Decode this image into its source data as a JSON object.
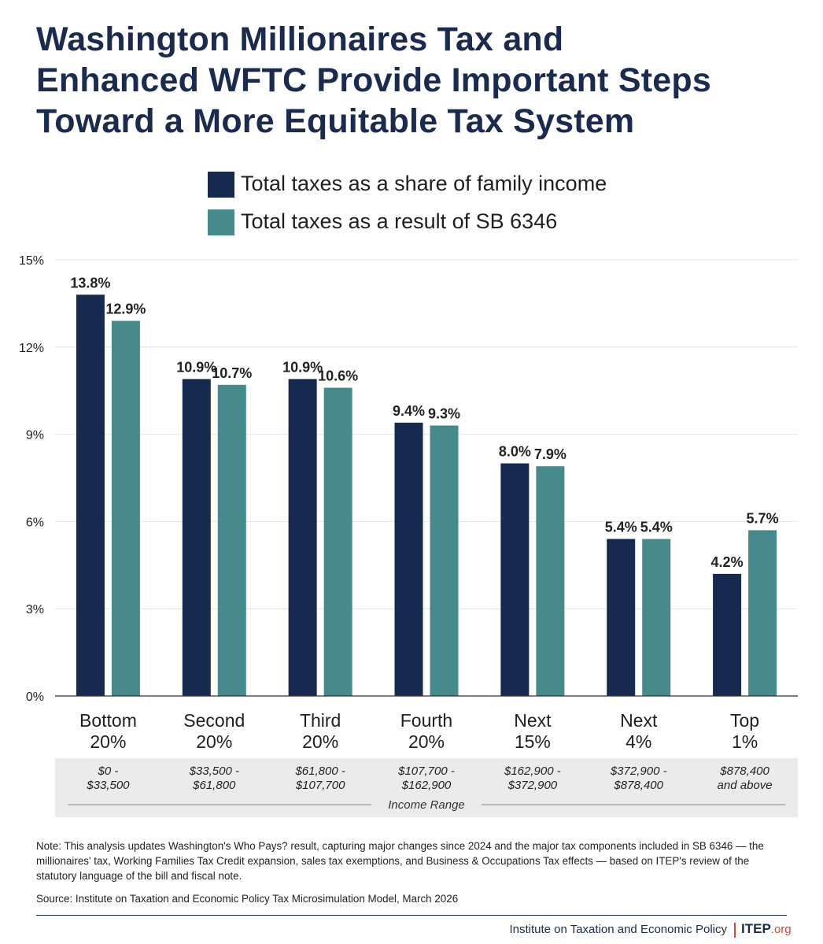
{
  "title_lines": [
    "Washington Millionaires Tax and",
    "Enhanced WFTC Provide Important Steps",
    "Toward a More Equitable Tax System"
  ],
  "colors": {
    "navy": "#152a4e",
    "teal": "#478a8c",
    "title": "#1a2b4f",
    "accent": "#d04a3a"
  },
  "chart_data": {
    "type": "bar",
    "categories": [
      "Bottom 20%",
      "Second 20%",
      "Third 20%",
      "Fourth 20%",
      "Next 15%",
      "Next 4%",
      "Top 1%"
    ],
    "category_lines": [
      [
        "Bottom",
        "20%"
      ],
      [
        "Second",
        "20%"
      ],
      [
        "Third",
        "20%"
      ],
      [
        "Fourth",
        "20%"
      ],
      [
        "Next",
        "15%"
      ],
      [
        "Next",
        "4%"
      ],
      [
        "Top",
        "1%"
      ]
    ],
    "income_ranges": [
      [
        "$0 -",
        "$33,500"
      ],
      [
        "$33,500 -",
        "$61,800"
      ],
      [
        "$61,800 -",
        "$107,700"
      ],
      [
        "$107,700 -",
        "$162,900"
      ],
      [
        "$162,900 -",
        "$372,900"
      ],
      [
        "$372,900 -",
        "$878,400"
      ],
      [
        "$878,400",
        "and above"
      ]
    ],
    "series": [
      {
        "name": "Total taxes as a share of family income",
        "values": [
          13.8,
          10.9,
          10.9,
          9.4,
          8.0,
          5.4,
          4.2
        ],
        "labels": [
          "13.8%",
          "10.9%",
          "10.9%",
          "9.4%",
          "8.0%",
          "5.4%",
          "4.2%"
        ]
      },
      {
        "name": "Total taxes as a result of SB 6346",
        "values": [
          12.9,
          10.7,
          10.6,
          9.3,
          7.9,
          5.4,
          5.7
        ],
        "labels": [
          "12.9%",
          "10.7%",
          "10.6%",
          "9.3%",
          "7.9%",
          "5.4%",
          "5.7%"
        ]
      }
    ],
    "ylim": [
      0,
      15
    ],
    "yticks": [
      0,
      3,
      6,
      9,
      12,
      15
    ],
    "ytick_labels": [
      "0%",
      "3%",
      "6%",
      "9%",
      "12%",
      "15%"
    ],
    "xlabel": "Income Range",
    "ylabel": "",
    "grid": true,
    "legend_position": "top"
  },
  "note": "Note: This analysis updates Washington's Who Pays? result, capturing major changes since 2024 and the major tax components included in SB 6346 — the millionaires' tax, Working Families Tax Credit expansion, sales tax exemptions, and Business & Occupations Tax effects — based on ITEP's review of the statutory language of the bill and fiscal note.",
  "source": "Source: Institute on Taxation and Economic Policy Tax Microsimulation Model, March 2026",
  "org_name": "Institute on Taxation and Economic Policy",
  "logo": {
    "main": "ITEP",
    "ext": ".org"
  }
}
